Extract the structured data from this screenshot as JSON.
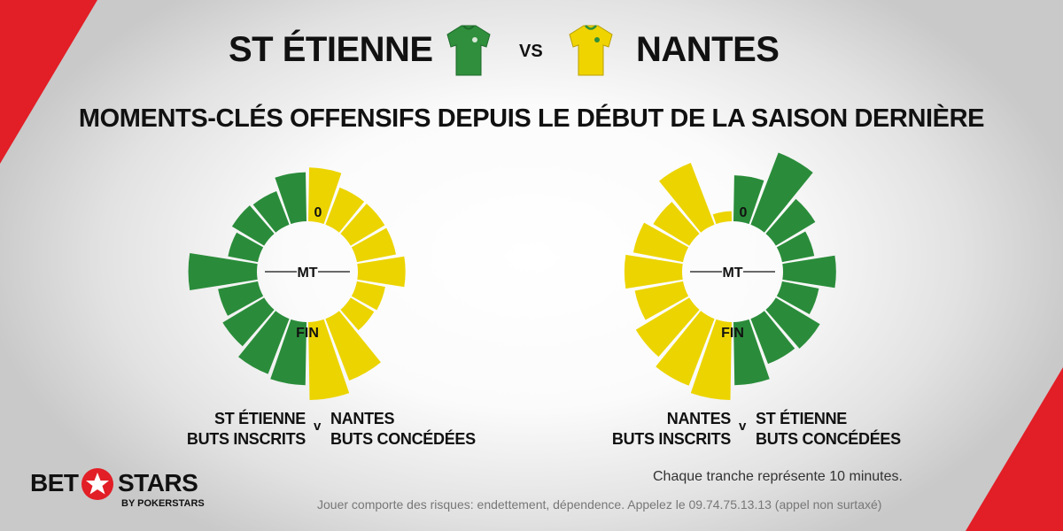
{
  "header": {
    "team_home": "ST ÉTIENNE",
    "team_away": "NANTES",
    "vs_label": "VS",
    "subtitle": "MOMENTS-CLÉS OFFENSIFS DEPUIS LE DÉBUT DE LA SAISON DERNIÈRE"
  },
  "colors": {
    "green": "#2a8c3a",
    "yellow": "#ecd400",
    "red": "#e21e26"
  },
  "icons": {
    "home_jersey": "green-jersey-icon",
    "away_jersey": "yellow-jersey-icon",
    "logo_star": "star-icon"
  },
  "chart_data": [
    {
      "type": "radial-bar",
      "marker_labels": {
        "start": "0",
        "half": "MT",
        "end": "FIN"
      },
      "series": [
        {
          "side": "left",
          "color": "#2a8c3a",
          "values": [
            63,
            46,
            48,
            39,
            88,
            52,
            62,
            76,
            81
          ]
        },
        {
          "side": "right",
          "color": "#ecd400",
          "values": [
            69,
            51,
            51,
            51,
            61,
            37,
            35,
            85,
            100
          ]
        }
      ],
      "labels": {
        "left_line1": "ST ÉTIENNE",
        "left_line2": "BUTS INSCRITS",
        "v": "v",
        "right_line1": "NANTES",
        "right_line2": "BUTS CONCÉDÉES"
      }
    },
    {
      "type": "radial-bar",
      "marker_labels": {
        "start": "0",
        "half": "MT",
        "end": "FIN"
      },
      "series": [
        {
          "side": "left",
          "color": "#ecd400",
          "values": [
            13,
            85,
            54,
            65,
            74,
            63,
            80,
            92,
            100
          ]
        },
        {
          "side": "right",
          "color": "#2a8c3a",
          "values": [
            59,
            99,
            59,
            42,
            68,
            48,
            66,
            62,
            81
          ]
        }
      ],
      "labels": {
        "left_line1": "NANTES",
        "left_line2": "BUTS INSCRITS",
        "v": "v",
        "right_line1": "ST ÉTIENNE",
        "right_line2": "BUTS CONCÉDÉES"
      }
    }
  ],
  "footer": {
    "note": "Chaque tranche représente 10 minutes.",
    "disclaimer": "Jouer comporte des risques: endettement, dépendence. Appelez le 09.74.75.13.13 (appel non surtaxé)"
  },
  "logo": {
    "bet": "BET",
    "stars": "STARS",
    "sub": "BY POKERSTARS"
  }
}
